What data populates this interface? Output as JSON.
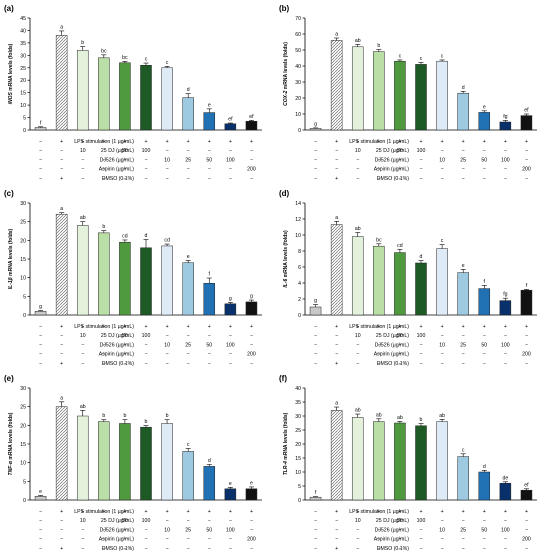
{
  "chart_data": [
    {
      "panel_label": "(a)",
      "type": "bar",
      "ylabel_name": "iNOS",
      "ylabel_suffix": " mRNA levels (folds)",
      "ylim": [
        0,
        45
      ],
      "yticks": [
        0,
        5,
        10,
        15,
        20,
        25,
        30,
        35,
        40,
        45
      ],
      "values": [
        1.0,
        38.0,
        32.0,
        29.0,
        27.0,
        26.0,
        25.0,
        13.0,
        7.0,
        2.5,
        3.5
      ],
      "errors": [
        0.3,
        1.8,
        1.5,
        1.2,
        0.6,
        0.9,
        0.6,
        1.6,
        1.5,
        0.3,
        0.4
      ],
      "letters": [
        "f",
        "a",
        "b",
        "bc",
        "bc",
        "c",
        "c",
        "d",
        "e",
        "ef",
        "ef"
      ]
    },
    {
      "panel_label": "(b)",
      "type": "bar",
      "ylabel_name": "COX-2",
      "ylabel_suffix": " mRNA levels (folds)",
      "ylim": [
        0,
        70
      ],
      "yticks": [
        0,
        10,
        20,
        30,
        40,
        50,
        60,
        70
      ],
      "values": [
        1.0,
        56.0,
        52.0,
        49.0,
        43.0,
        41.0,
        43.0,
        23.0,
        11.0,
        5.0,
        9.0
      ],
      "errors": [
        0.3,
        1.5,
        1.5,
        1.2,
        0.8,
        1.2,
        0.8,
        1.2,
        1.0,
        1.0,
        1.0
      ],
      "letters": [
        "g",
        "a",
        "ab",
        "b",
        "c",
        "c",
        "c",
        "d",
        "e",
        "fg",
        "ef"
      ]
    },
    {
      "panel_label": "(c)",
      "type": "bar",
      "ylabel_name": "IL-1β",
      "ylabel_suffix": " mRNA levels (folds)",
      "ylim": [
        0,
        30
      ],
      "yticks": [
        0,
        5,
        10,
        15,
        20,
        25,
        30
      ],
      "values": [
        1.0,
        27.0,
        24.0,
        22.0,
        19.5,
        18.0,
        18.5,
        14.0,
        8.5,
        3.0,
        3.5
      ],
      "errors": [
        0.2,
        0.4,
        1.0,
        0.6,
        0.6,
        2.2,
        0.5,
        0.6,
        1.4,
        0.4,
        0.5
      ],
      "letters": [
        "g",
        "a",
        "ab",
        "b",
        "cd",
        "d",
        "cd",
        "e",
        "f",
        "g",
        "g"
      ]
    },
    {
      "panel_label": "(d)",
      "type": "bar",
      "ylabel_name": "IL-6",
      "ylabel_suffix": " mRNA levels (folds)",
      "ylim": [
        0,
        14
      ],
      "yticks": [
        0,
        2,
        4,
        6,
        8,
        10,
        12,
        14
      ],
      "values": [
        1.0,
        11.3,
        9.8,
        8.6,
        7.8,
        6.5,
        8.3,
        5.3,
        3.3,
        1.8,
        3.1
      ],
      "errors": [
        0.3,
        0.4,
        0.5,
        0.3,
        0.4,
        0.3,
        0.5,
        0.4,
        0.4,
        0.3,
        0.1
      ],
      "letters": [
        "g",
        "a",
        "ab",
        "bc",
        "cd",
        "d",
        "c",
        "e",
        "f",
        "fg",
        "f"
      ]
    },
    {
      "panel_label": "(e)",
      "type": "bar",
      "ylabel_name": "TNF-α",
      "ylabel_suffix": " mRNA levels (folds)",
      "ylim": [
        0,
        30
      ],
      "yticks": [
        0,
        5,
        10,
        15,
        20,
        25,
        30
      ],
      "values": [
        1.0,
        25.0,
        22.5,
        21.0,
        20.5,
        19.5,
        20.5,
        13.0,
        9.0,
        3.0,
        3.0
      ],
      "errors": [
        0.2,
        1.3,
        1.5,
        0.5,
        1.0,
        0.4,
        1.0,
        0.8,
        0.5,
        0.4,
        0.5
      ],
      "letters": [
        "e",
        "a",
        "ab",
        "b",
        "b",
        "b",
        "b",
        "c",
        "d",
        "e",
        "e"
      ]
    },
    {
      "panel_label": "(f)",
      "type": "bar",
      "ylabel_name": "TLR-4",
      "ylabel_suffix": " mRNA levels (folds)",
      "ylim": [
        0,
        40
      ],
      "yticks": [
        0,
        5,
        10,
        15,
        20,
        25,
        30,
        35,
        40
      ],
      "values": [
        1.0,
        32.0,
        29.5,
        28.0,
        27.5,
        26.5,
        28.0,
        15.5,
        10.0,
        6.0,
        3.5
      ],
      "errors": [
        0.2,
        1.2,
        1.2,
        1.0,
        0.6,
        0.8,
        0.8,
        1.0,
        0.6,
        0.5,
        0.5
      ],
      "letters": [
        "f",
        "a",
        "ab",
        "ab",
        "ab",
        "b",
        "ab",
        "c",
        "d",
        "de",
        "ef"
      ]
    }
  ],
  "treatment_rows": [
    {
      "label": "LPS stimulation (1 µg/mL)",
      "cells": [
        "−",
        "+",
        "+",
        "+",
        "+",
        "+",
        "+",
        "+",
        "+",
        "+",
        "+"
      ]
    },
    {
      "label": "DJ (µg/mL)",
      "cells": [
        "−",
        "−",
        "10",
        "25",
        "50",
        "100",
        "−",
        "−",
        "−",
        "−",
        "−"
      ]
    },
    {
      "label": "DJ526 (µg/mL)",
      "cells": [
        "−",
        "−",
        "−",
        "−",
        "−",
        "−",
        "10",
        "25",
        "50",
        "100",
        "−"
      ]
    },
    {
      "label": "Aspirin (µg/mL)",
      "cells": [
        "−",
        "−",
        "−",
        "−",
        "−",
        "−",
        "−",
        "−",
        "−",
        "−",
        "200"
      ]
    },
    {
      "label": "DMSO (0.1%)",
      "cells": [
        "−",
        "+",
        "−",
        "−",
        "−",
        "−",
        "−",
        "−",
        "−",
        "−",
        "−"
      ]
    }
  ],
  "bar_colors": [
    "#c8c8c8",
    "hatched",
    "#e4f2dc",
    "#b9dfa6",
    "#4f9a3e",
    "#1d5a25",
    "#deebf7",
    "#9ecae1",
    "#2171b5",
    "#08306b",
    "#111111"
  ]
}
